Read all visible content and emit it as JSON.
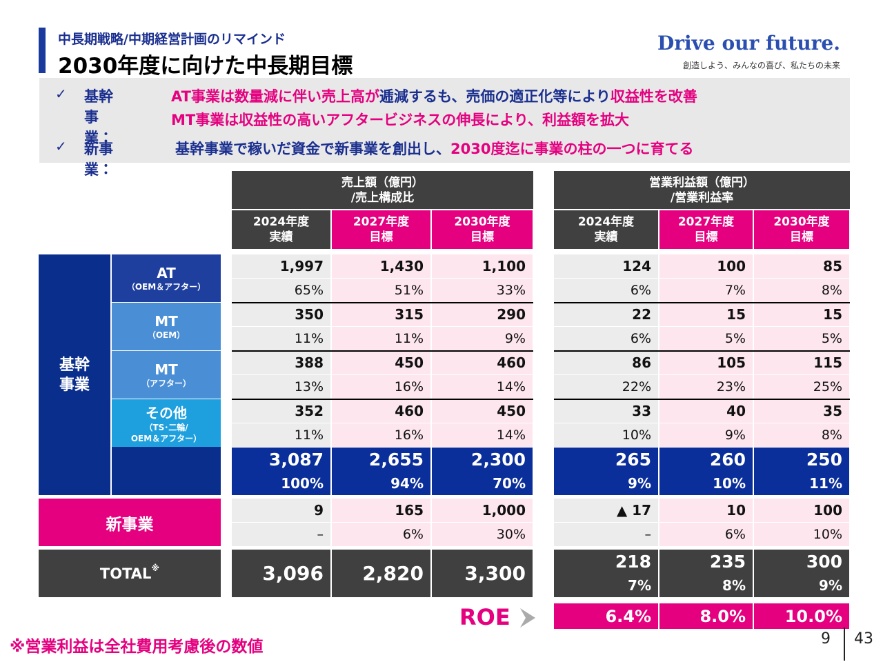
{
  "header": {
    "subtitle": "中長期戦略/中期経営計画のリマインド",
    "title": "2030年度に向けた中長期目標",
    "brand": "Drive our future.",
    "tagline": "創造しよう、みんなの喜び、私たちの未来"
  },
  "summary": [
    {
      "label": "基幹事業：",
      "segments": [
        {
          "text": "AT事業は数量減に伴い売上高が",
          "color": "#e4007f"
        },
        {
          "text": "逓減するも、売価の適正化等により",
          "color": "#1a2f8f"
        },
        {
          "text": "収益性を改善",
          "color": "#e4007f"
        }
      ]
    },
    {
      "segments": [
        {
          "text": "MT事業は収益性の高いアフタービジネスの伸長により、利益額を拡大",
          "color": "#e4007f"
        }
      ]
    },
    {
      "label": "新事業：",
      "segments": [
        {
          "text": "基幹事業で稼いだ資金で新事業を創出し、",
          "color": "#1a2f8f"
        },
        {
          "text": "2030度迄に事業の柱の一つに育てる",
          "color": "#e4007f"
        }
      ]
    }
  ],
  "table": {
    "groups": [
      {
        "title": [
          "売上額（億円）",
          "/売上構成比"
        ],
        "columns": [
          [
            "2024年度",
            "実績"
          ],
          [
            "2027年度",
            "目標"
          ],
          [
            "2030年度",
            "目標"
          ]
        ]
      },
      {
        "title": [
          "営業利益額（億円）",
          "/営業利益率"
        ],
        "columns": [
          [
            "2024年度",
            "実績"
          ],
          [
            "2027年度",
            "目標"
          ],
          [
            "2030年度",
            "目標"
          ]
        ]
      }
    ],
    "core_label": [
      "基幹",
      "事業"
    ],
    "rows": [
      {
        "name": "AT",
        "sub": [
          "（OEM＆アフター）"
        ],
        "color": "#1f3f9e",
        "sales": [
          "1,997",
          "1,430",
          "1,100"
        ],
        "sales_pct": [
          "65%",
          "51%",
          "33%"
        ],
        "profit": [
          "124",
          "100",
          "85"
        ],
        "profit_pct": [
          "6%",
          "7%",
          "8%"
        ]
      },
      {
        "name": "MT",
        "sub": [
          "（OEM）"
        ],
        "color": "#4a8fd6",
        "sales": [
          "350",
          "315",
          "290"
        ],
        "sales_pct": [
          "11%",
          "11%",
          "9%"
        ],
        "profit": [
          "22",
          "15",
          "15"
        ],
        "profit_pct": [
          "6%",
          "5%",
          "5%"
        ]
      },
      {
        "name": "MT",
        "sub": [
          "（アフター）"
        ],
        "color": "#4a8fd6",
        "sales": [
          "388",
          "450",
          "460"
        ],
        "sales_pct": [
          "13%",
          "16%",
          "14%"
        ],
        "profit": [
          "86",
          "105",
          "115"
        ],
        "profit_pct": [
          "22%",
          "23%",
          "25%"
        ]
      },
      {
        "name": "その他",
        "sub": [
          "（TS･二輪/",
          "OEM＆アフター）"
        ],
        "color": "#1fa0de",
        "sales": [
          "352",
          "460",
          "450"
        ],
        "sales_pct": [
          "11%",
          "16%",
          "14%"
        ],
        "profit": [
          "33",
          "40",
          "35"
        ],
        "profit_pct": [
          "10%",
          "9%",
          "8%"
        ]
      }
    ],
    "subtotal": {
      "sales": [
        "3,087",
        "2,655",
        "2,300"
      ],
      "sales_pct": [
        "100%",
        "94%",
        "70%"
      ],
      "profit": [
        "265",
        "260",
        "250"
      ],
      "profit_pct": [
        "9%",
        "10%",
        "11%"
      ]
    },
    "new_business": {
      "name": "新事業",
      "sales": [
        "9",
        "165",
        "1,000"
      ],
      "sales_pct": [
        "–",
        "6%",
        "30%"
      ],
      "profit": [
        "▲ 17",
        "10",
        "100"
      ],
      "profit_pct": [
        "–",
        "6%",
        "10%"
      ]
    },
    "total": {
      "name": "TOTAL",
      "mark": "※",
      "sales": [
        "3,096",
        "2,820",
        "3,300"
      ],
      "profit": [
        "218",
        "235",
        "300"
      ],
      "profit_pct": [
        "7%",
        "8%",
        "9%"
      ]
    },
    "roe": {
      "name": "ROE",
      "values": [
        "6.4%",
        "8.0%",
        "10.0%"
      ]
    }
  },
  "footnote": "※営業利益は全社費用考慮後の数値",
  "page": {
    "current": "9",
    "total": "43"
  }
}
